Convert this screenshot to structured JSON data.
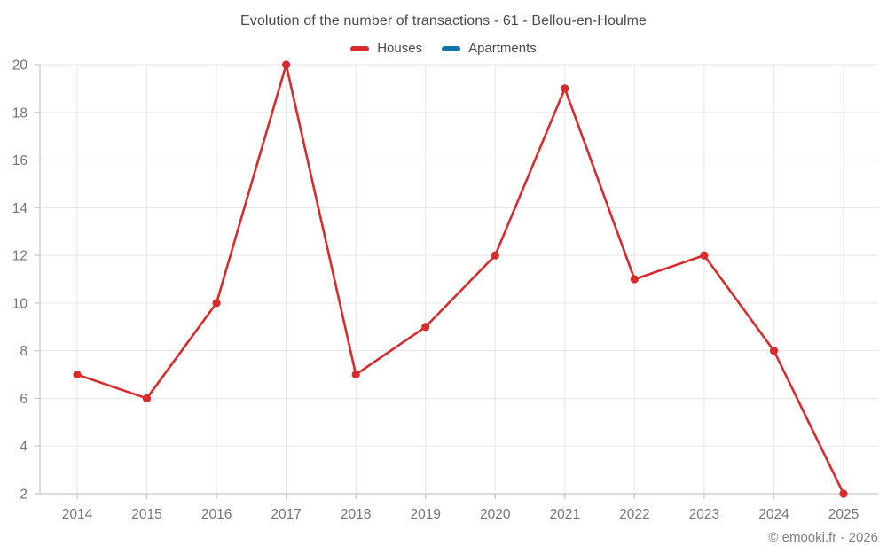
{
  "chart": {
    "title": "Evolution of the number of transactions - 61 - Bellou-en-Houlme",
    "footer": "© emooki.fr - 2026"
  },
  "legend": {
    "items": [
      {
        "label": "Houses",
        "color": "#d92b2b"
      },
      {
        "label": "Apartments",
        "color": "#1372a6"
      }
    ]
  },
  "chart_data": {
    "type": "line",
    "title": "Evolution of the number of transactions - 61 - Bellou-en-Houlme",
    "x": [
      2014,
      2015,
      2016,
      2017,
      2018,
      2019,
      2020,
      2021,
      2022,
      2023,
      2024,
      2025
    ],
    "series": [
      {
        "name": "Houses",
        "color": "#d92b2b",
        "values": [
          7,
          6,
          10,
          20,
          7,
          9,
          12,
          19,
          11,
          12,
          8,
          2
        ]
      },
      {
        "name": "Apartments",
        "color": "#1372a6",
        "values": []
      }
    ],
    "xlabel": "",
    "ylabel": "",
    "ylim": [
      2,
      20
    ],
    "ytick_step": 2,
    "grid": true,
    "legend_position": "top"
  },
  "colors": {
    "background": "#ffffff",
    "grid": "#ebebeb",
    "axis": "#c9c9c9",
    "tick_label": "#757575",
    "title_text": "#4a4a4a",
    "footer_text": "#808080"
  }
}
